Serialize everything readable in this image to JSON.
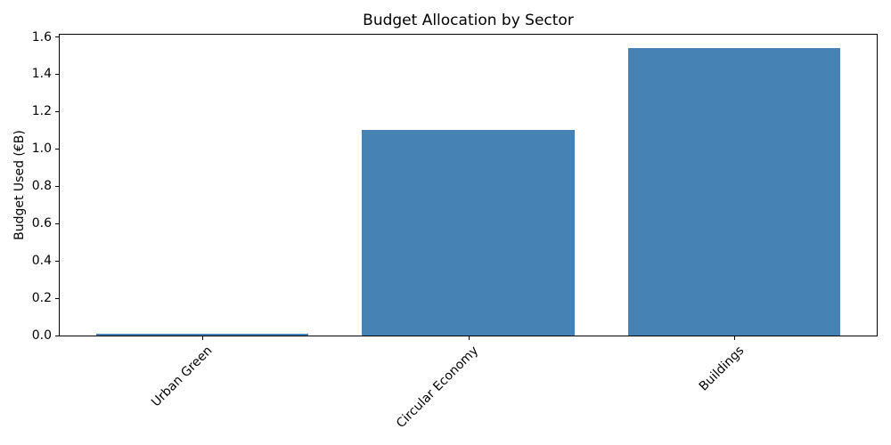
{
  "chart_data": {
    "type": "bar",
    "title": "Budget Allocation by Sector",
    "xlabel": "",
    "ylabel": "Budget Used (€B)",
    "categories": [
      "Urban Green",
      "Circular Economy",
      "Buildings"
    ],
    "values": [
      0.01,
      1.1,
      1.54
    ],
    "bar_color": "#4682b4",
    "text_color": "#000000",
    "background_color": "#ffffff",
    "ylim": [
      0,
      1.617
    ],
    "xlim": [
      -0.54,
      2.54
    ],
    "bar_width_units": 0.8,
    "yticks": [
      {
        "value": 0.0,
        "label": "0.0"
      },
      {
        "value": 0.2,
        "label": "0.2"
      },
      {
        "value": 0.4,
        "label": "0.4"
      },
      {
        "value": 0.6,
        "label": "0.6"
      },
      {
        "value": 0.8,
        "label": "0.8"
      },
      {
        "value": 1.0,
        "label": "1.0"
      },
      {
        "value": 1.2,
        "label": "1.2"
      },
      {
        "value": 1.4,
        "label": "1.4"
      },
      {
        "value": 1.6,
        "label": "1.6"
      }
    ],
    "x_tick_rotation_deg": 45,
    "grid": false,
    "legend": "none"
  }
}
